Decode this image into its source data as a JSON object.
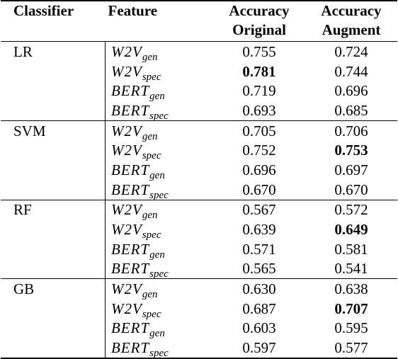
{
  "header": [
    {
      "lines": [
        "Classifier"
      ]
    },
    {
      "lines": [
        "Feature"
      ]
    },
    {
      "lines": [
        "Accuracy",
        "Original"
      ]
    },
    {
      "lines": [
        "Accuracy",
        "Augment"
      ]
    }
  ],
  "groups": [
    {
      "classifier": "LR",
      "rows": [
        {
          "feature": {
            "base": "W2V",
            "sub": "gen"
          },
          "original": {
            "text": "0.755"
          },
          "augment": {
            "text": "0.724"
          }
        },
        {
          "feature": {
            "base": "W2V",
            "sub": "spec"
          },
          "original": {
            "text": "0.781",
            "bold": true
          },
          "augment": {
            "text": "0.744"
          }
        },
        {
          "feature": {
            "base": "BERT",
            "sub": "gen"
          },
          "original": {
            "text": "0.719"
          },
          "augment": {
            "text": "0.696"
          }
        },
        {
          "feature": {
            "base": "BERT",
            "sub": "spec"
          },
          "original": {
            "text": "0.693"
          },
          "augment": {
            "text": "0.685"
          }
        }
      ]
    },
    {
      "classifier": "SVM",
      "rows": [
        {
          "feature": {
            "base": "W2V",
            "sub": "gen"
          },
          "original": {
            "text": "0.705"
          },
          "augment": {
            "text": "0.706"
          }
        },
        {
          "feature": {
            "base": "W2V",
            "sub": "spec"
          },
          "original": {
            "text": "0.752"
          },
          "augment": {
            "text": "0.753",
            "bold": true
          }
        },
        {
          "feature": {
            "base": "BERT",
            "sub": "gen"
          },
          "original": {
            "text": "0.696"
          },
          "augment": {
            "text": "0.697"
          }
        },
        {
          "feature": {
            "base": "BERT",
            "sub": "spec"
          },
          "original": {
            "text": "0.670"
          },
          "augment": {
            "text": "0.670"
          }
        }
      ]
    },
    {
      "classifier": "RF",
      "rows": [
        {
          "feature": {
            "base": "W2V",
            "sub": "gen"
          },
          "original": {
            "text": "0.567"
          },
          "augment": {
            "text": "0.572"
          }
        },
        {
          "feature": {
            "base": "W2V",
            "sub": "spec"
          },
          "original": {
            "text": "0.639"
          },
          "augment": {
            "text": "0.649",
            "bold": true
          }
        },
        {
          "feature": {
            "base": "BERT",
            "sub": "gen"
          },
          "original": {
            "text": "0.571"
          },
          "augment": {
            "text": "0.581"
          }
        },
        {
          "feature": {
            "base": "BERT",
            "sub": "spec"
          },
          "original": {
            "text": "0.565"
          },
          "augment": {
            "text": "0.541"
          }
        }
      ]
    },
    {
      "classifier": "GB",
      "rows": [
        {
          "feature": {
            "base": "W2V",
            "sub": "gen"
          },
          "original": {
            "text": "0.630"
          },
          "augment": {
            "text": "0.638"
          }
        },
        {
          "feature": {
            "base": "W2V",
            "sub": "spec"
          },
          "original": {
            "text": "0.687"
          },
          "augment": {
            "text": "0.707",
            "bold": true
          }
        },
        {
          "feature": {
            "base": "BERT",
            "sub": "gen"
          },
          "original": {
            "text": "0.603"
          },
          "augment": {
            "text": "0.595"
          }
        },
        {
          "feature": {
            "base": "BERT",
            "sub": "spec"
          },
          "original": {
            "text": "0.597"
          },
          "augment": {
            "text": "0.577"
          }
        }
      ]
    }
  ]
}
